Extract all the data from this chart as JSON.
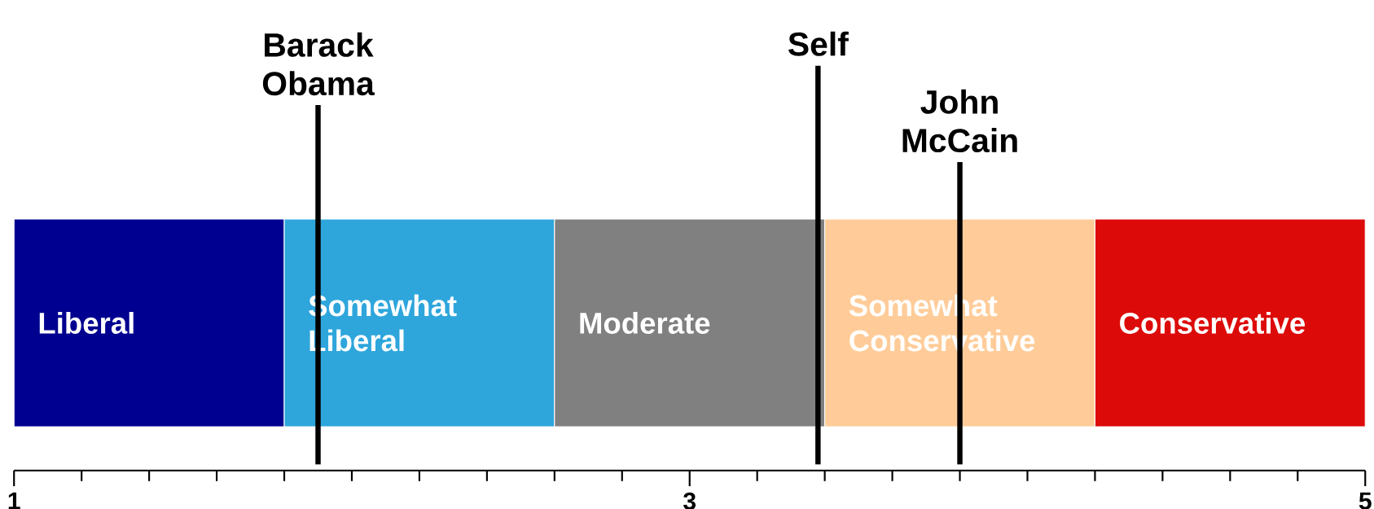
{
  "chart_data": {
    "type": "bar",
    "orientation": "horizontal",
    "categories": [
      null
    ],
    "xlim": [
      1,
      5
    ],
    "xticks": [
      {
        "value": 1,
        "label": "1"
      },
      {
        "value": 1.2,
        "label": null
      },
      {
        "value": 1.4,
        "label": null
      },
      {
        "value": 1.6,
        "label": null
      },
      {
        "value": 1.8,
        "label": null
      },
      {
        "value": 2,
        "label": null
      },
      {
        "value": 2.2,
        "label": null
      },
      {
        "value": 2.4,
        "label": null
      },
      {
        "value": 2.6,
        "label": null
      },
      {
        "value": 2.8,
        "label": null
      },
      {
        "value": 3,
        "label": "3"
      },
      {
        "value": 3.2,
        "label": null
      },
      {
        "value": 3.4,
        "label": null
      },
      {
        "value": 3.6,
        "label": null
      },
      {
        "value": 3.8,
        "label": null
      },
      {
        "value": 4,
        "label": null
      },
      {
        "value": 4.2,
        "label": null
      },
      {
        "value": 4.4,
        "label": null
      },
      {
        "value": 4.6,
        "label": null
      },
      {
        "value": 4.8,
        "label": null
      },
      {
        "value": 5,
        "label": "5"
      }
    ],
    "series": [
      {
        "name": "Liberal",
        "color": "#000090",
        "base": [
          1
        ],
        "values": [
          0.8
        ]
      },
      {
        "name": "Somewhat Liberal",
        "color": "#2ea6dc",
        "base": [
          1.8
        ],
        "values": [
          0.8
        ]
      },
      {
        "name": "Moderate",
        "color": "#808080",
        "base": [
          2.6
        ],
        "values": [
          0.8
        ]
      },
      {
        "name": "Somewhat Conservative",
        "color": "#ffcc99",
        "base": [
          3.4
        ],
        "values": [
          0.8
        ]
      },
      {
        "name": "Conservative",
        "color": "#dd0a0a",
        "base": [
          4.2
        ],
        "values": [
          0.8
        ]
      }
    ],
    "ref_lines": [
      {
        "axis": "x",
        "value": 1.9,
        "label": "Barack Obama",
        "color": "#000000"
      },
      {
        "axis": "x",
        "value": 3.38,
        "label": "Self",
        "color": "#000000"
      },
      {
        "axis": "x",
        "value": 3.8,
        "label": "John McCain",
        "color": "#000000"
      }
    ]
  }
}
